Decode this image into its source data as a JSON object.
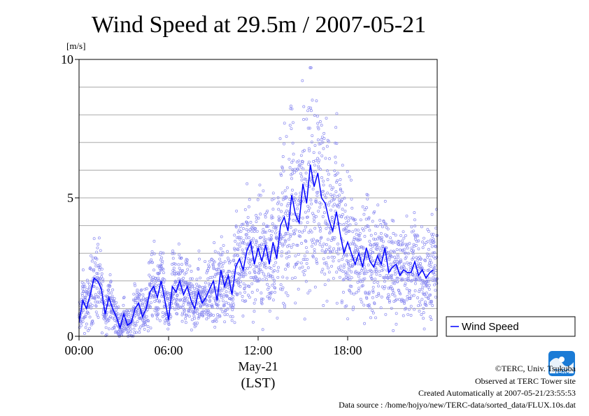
{
  "chart_data": {
    "type": "scatter",
    "title": "Wind Speed at 29.5m / 2007-05-21",
    "ylabel": "[m/s]",
    "xlabel": "May-21",
    "xlabel_sub": "(LST)",
    "x_unit": "hour of day (LST)",
    "xlim": [
      0,
      24
    ],
    "ylim": [
      0,
      10
    ],
    "x_ticks": [
      {
        "value": 0,
        "label": "00:00"
      },
      {
        "value": 6,
        "label": "06:00"
      },
      {
        "value": 12,
        "label": "12:00"
      },
      {
        "value": 18,
        "label": "18:00"
      }
    ],
    "y_ticks": [
      {
        "value": 0,
        "label": "0"
      },
      {
        "value": 5,
        "label": "5"
      },
      {
        "value": 10,
        "label": "10"
      }
    ],
    "grid": {
      "horizontal": true,
      "vertical": false,
      "step": 1
    },
    "legend": {
      "position": "right",
      "entries": [
        "Wind Speed"
      ]
    },
    "colors": {
      "series": "#0000ff",
      "scatter": "#8a8af0",
      "grid": "#a9a9a9"
    },
    "series": [
      {
        "name": "Wind Speed",
        "x": [
          0.0,
          0.25,
          0.5,
          0.75,
          1.0,
          1.25,
          1.5,
          1.75,
          2.0,
          2.25,
          2.5,
          2.75,
          3.0,
          3.25,
          3.5,
          3.75,
          4.0,
          4.25,
          4.5,
          4.75,
          5.0,
          5.25,
          5.5,
          5.75,
          6.0,
          6.25,
          6.5,
          6.75,
          7.0,
          7.25,
          7.5,
          7.75,
          8.0,
          8.25,
          8.5,
          8.75,
          9.0,
          9.25,
          9.5,
          9.75,
          10.0,
          10.25,
          10.5,
          10.75,
          11.0,
          11.25,
          11.5,
          11.75,
          12.0,
          12.25,
          12.5,
          12.75,
          13.0,
          13.25,
          13.5,
          13.75,
          14.0,
          14.25,
          14.5,
          14.75,
          15.0,
          15.25,
          15.5,
          15.75,
          16.0,
          16.25,
          16.5,
          16.75,
          17.0,
          17.25,
          17.5,
          17.75,
          18.0,
          18.25,
          18.5,
          18.75,
          19.0,
          19.25,
          19.5,
          19.75,
          20.0,
          20.25,
          20.5,
          20.75,
          21.0,
          21.25,
          21.5,
          21.75,
          22.0,
          22.25,
          22.5,
          22.75,
          23.0,
          23.25,
          23.5,
          23.75
        ],
        "values": [
          0.5,
          1.3,
          1.0,
          1.5,
          2.1,
          2.0,
          1.7,
          0.8,
          1.4,
          1.0,
          0.7,
          0.3,
          0.8,
          0.4,
          0.5,
          1.0,
          1.2,
          0.7,
          1.0,
          1.6,
          1.8,
          1.4,
          2.0,
          1.3,
          0.6,
          1.8,
          1.6,
          2.0,
          1.5,
          1.8,
          1.3,
          1.0,
          1.6,
          1.2,
          1.4,
          1.7,
          2.0,
          1.3,
          2.4,
          1.8,
          2.2,
          1.5,
          2.5,
          2.8,
          2.4,
          3.1,
          3.4,
          2.6,
          3.2,
          2.7,
          3.3,
          2.6,
          3.4,
          2.8,
          4.0,
          4.3,
          3.8,
          5.1,
          4.4,
          4.1,
          5.5,
          4.8,
          6.2,
          5.4,
          5.9,
          5.0,
          4.8,
          4.2,
          3.8,
          4.5,
          3.7,
          3.0,
          3.4,
          3.0,
          2.6,
          3.0,
          2.5,
          3.2,
          2.7,
          2.5,
          2.9,
          2.6,
          3.2,
          2.3,
          2.5,
          2.6,
          2.2,
          2.4,
          2.3,
          2.3,
          2.7,
          2.2,
          2.4,
          2.1,
          2.3,
          2.4
        ]
      }
    ]
  },
  "credits": {
    "copyright": "©TERC, Univ. Tsukuba",
    "site": "Observed at TERC Tower site",
    "created": "Created Automatically at 2007-05-21/23:55:53",
    "source": "Data source : /home/hojyo/new/TERC-data/sorted_data/FLUX.10s.dat",
    "logo_text": "TERC"
  }
}
